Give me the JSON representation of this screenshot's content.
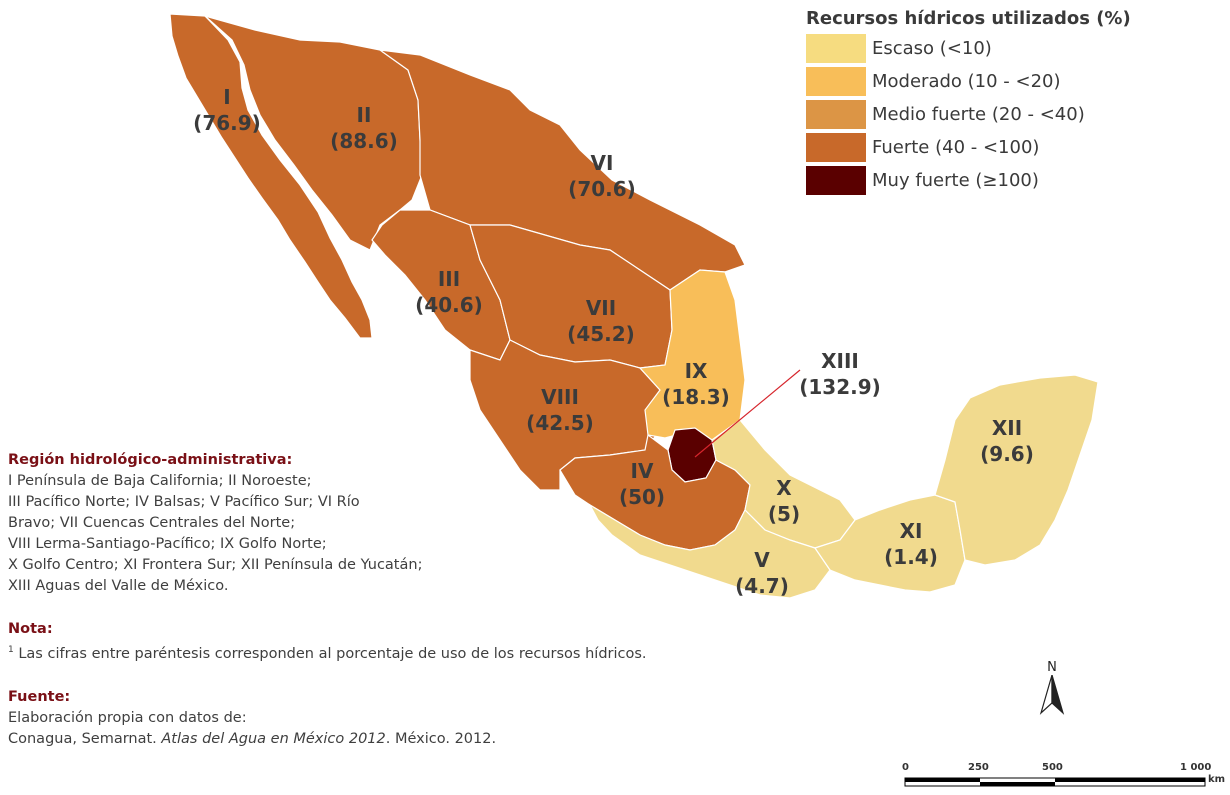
{
  "legend": {
    "title": "Recursos hídricos utilizados (%)",
    "items": [
      {
        "label": "Escaso (<10)",
        "color": "#f6dc80"
      },
      {
        "label": "Moderado (10 - <20)",
        "color": "#f8be59"
      },
      {
        "label": "Medio fuerte (20 - <40)",
        "color": "#dc9545"
      },
      {
        "label": "Fuerte (40 - <100)",
        "color": "#c8692a"
      },
      {
        "label": "Muy fuerte (≥100)",
        "color": "#5a0000"
      }
    ]
  },
  "regions": [
    {
      "id": "I",
      "value": "(76.9)"
    },
    {
      "id": "II",
      "value": "(88.6)"
    },
    {
      "id": "III",
      "value": "(40.6)"
    },
    {
      "id": "IV",
      "value": "(50)"
    },
    {
      "id": "V",
      "value": "(4.7)"
    },
    {
      "id": "VI",
      "value": "(70.6)"
    },
    {
      "id": "VII",
      "value": "(45.2)"
    },
    {
      "id": "VIII",
      "value": "(42.5)"
    },
    {
      "id": "IX",
      "value": "(18.3)"
    },
    {
      "id": "X",
      "value": "(5)"
    },
    {
      "id": "XI",
      "value": "(1.4)"
    },
    {
      "id": "XII",
      "value": "(9.6)"
    },
    {
      "id": "XIII",
      "value": "(132.9)"
    }
  ],
  "info": {
    "region_title": "Región hidrológico-administrativa:",
    "region_lines": [
      "I Península de Baja California; II Noroeste;",
      "III Pacífico Norte; IV Balsas; V Pacífico Sur; VI Río",
      "Bravo; VII Cuencas Centrales del Norte;",
      "VIII Lerma-Santiago-Pacífico; IX Golfo Norte;",
      "X Golfo Centro; XI Frontera Sur; XII Península de Yucatán;",
      "XIII Aguas del Valle de México."
    ],
    "note_title": "Nota:",
    "note_marker": "1",
    "note_text": " Las cifras entre paréntesis corresponden al porcentaje de uso de los recursos hídricos.",
    "source_title": "Fuente:",
    "source_line1": "Elaboración propia con datos de:",
    "source_pre": "Conagua, Semarnat. ",
    "source_italic": "Atlas del Agua en México 2012",
    "source_post": ". México. 2012."
  },
  "north": "N",
  "scale": {
    "ticks": [
      "0",
      "250",
      "500",
      "1 000"
    ],
    "unit": "km"
  }
}
